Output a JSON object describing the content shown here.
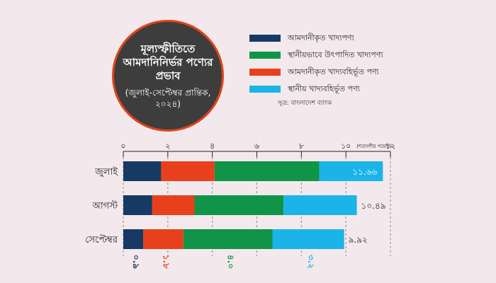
{
  "header": {
    "title": "মূল্যস্ফীতিতে আমদানিনির্ভর পণ্যের প্রভাব",
    "subtitle": "(জুলাই-সেপ্টেম্বর প্রান্তিক, ২০২৪)"
  },
  "source": "সূত্র: বাংলাদেশ ব্যাংক",
  "colors": {
    "background": "#f3e9ec",
    "imported_food": "#163a63",
    "local_food": "#0f9448",
    "imported_nonfood": "#e8401c",
    "local_nonfood": "#1bb4e8",
    "title_bg": "#3d3d3d",
    "title_border": "#e0441b"
  },
  "chart_data": {
    "type": "bar",
    "orientation": "horizontal",
    "stacked": true,
    "unit_label": "(শতাংশীয় পয়েন্ট)",
    "xlim": [
      0,
      12
    ],
    "xticks": [
      0,
      2,
      4,
      6,
      8,
      10,
      12
    ],
    "xtick_labels": [
      "০",
      "২",
      "৪",
      "৬",
      "৮",
      "১০",
      "১২"
    ],
    "categories": [
      "জুলাই",
      "আগস্ট",
      "সেপ্টেম্বর"
    ],
    "series": [
      {
        "name": "আমদানীকৃত খাদ্যপণ্য",
        "color": "#163a63",
        "values": [
          1.7,
          1.3,
          0.9
        ]
      },
      {
        "name": "আমদানীকৃত খাদ্যবহির্ভূত পণ্য",
        "color": "#e8401c",
        "values": [
          2.4,
          1.9,
          1.8
        ]
      },
      {
        "name": "স্থানীয়ভাবে উৎপাদিত খাদ্যপণ্য",
        "color": "#0f9448",
        "values": [
          4.7,
          4.0,
          4.0
        ]
      },
      {
        "name": "স্থানীয় খাদ্যবহির্ভূত পণ্য",
        "color": "#1bb4e8",
        "values": [
          2.86,
          3.29,
          3.22
        ]
      }
    ],
    "totals": [
      11.66,
      10.49,
      9.92
    ],
    "total_labels": [
      "১১.৬৬",
      "১০.৪৯",
      "৯.৯২"
    ],
    "september_labels": [
      "০.৯",
      "১.৮",
      "৪.০",
      "৩.২"
    ]
  }
}
